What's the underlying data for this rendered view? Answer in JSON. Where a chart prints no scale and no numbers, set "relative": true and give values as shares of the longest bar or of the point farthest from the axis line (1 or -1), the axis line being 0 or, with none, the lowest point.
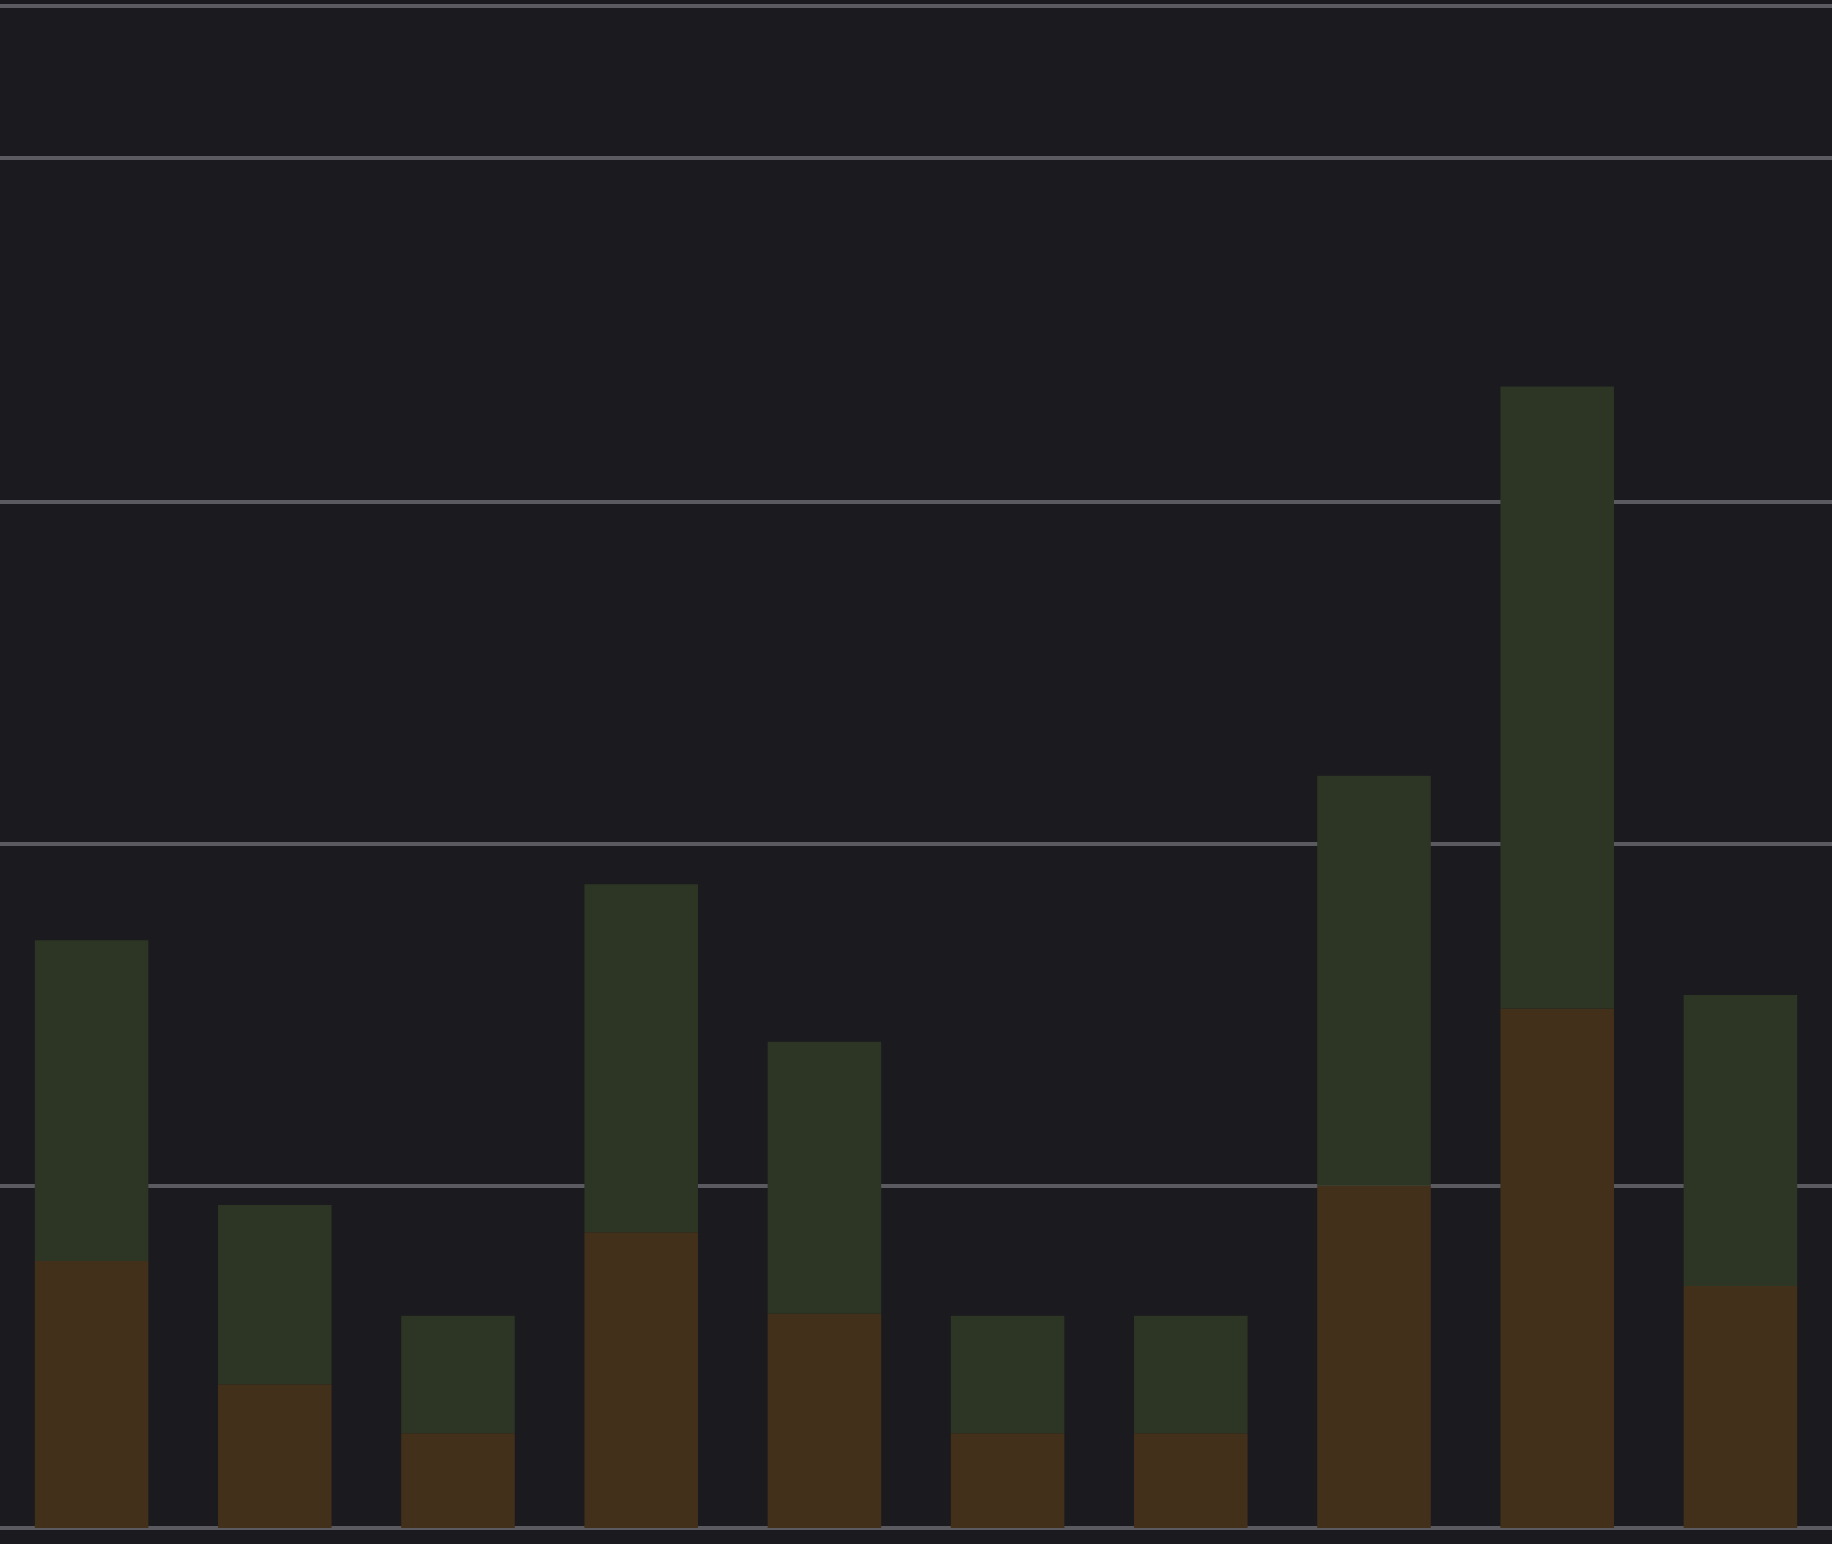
{
  "chart_data": {
    "type": "bar",
    "stacked": true,
    "relative": true,
    "grid": "y",
    "categories": [
      null,
      null,
      null,
      null,
      null,
      null,
      null,
      null,
      null,
      null
    ],
    "series": [
      {
        "color": "#42301a",
        "values": [
          0.234,
          0.126,
          0.083,
          0.259,
          0.188,
          0.083,
          0.083,
          0.3,
          0.455,
          0.212
        ]
      },
      {
        "color": "#2d3524",
        "values": [
          0.281,
          0.157,
          0.103,
          0.305,
          0.238,
          0.103,
          0.103,
          0.359,
          0.545,
          0.255
        ]
      }
    ]
  }
}
